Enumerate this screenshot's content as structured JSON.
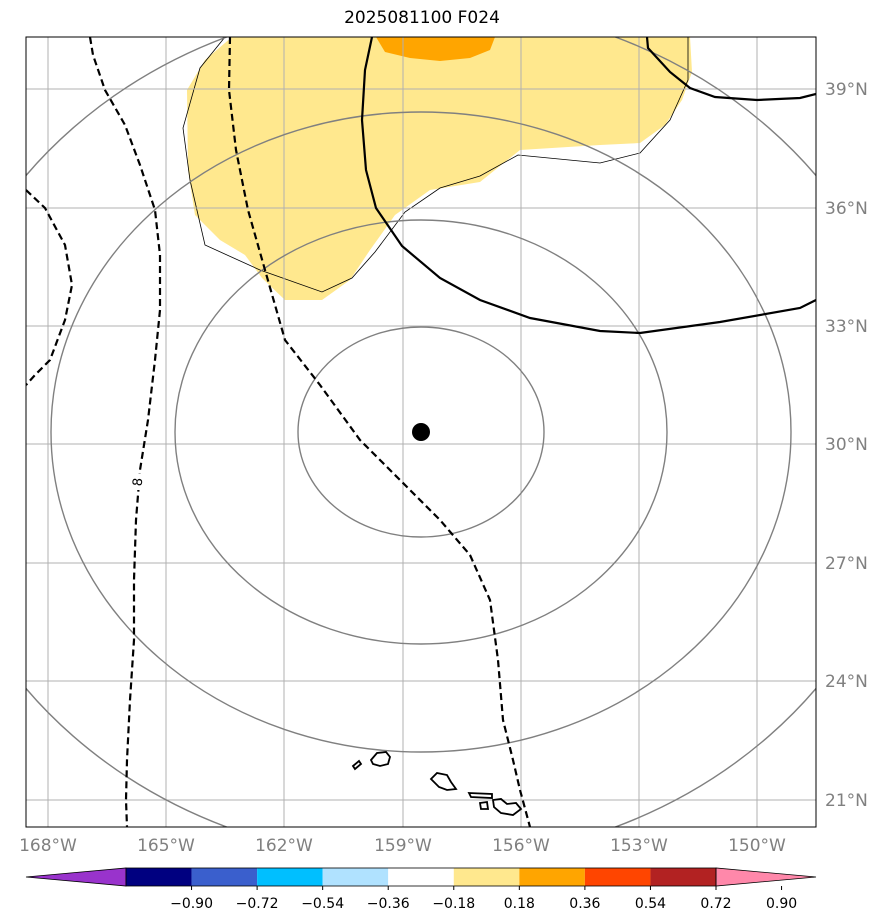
{
  "title": "2025081100 F024",
  "lon_labels": [
    "168°W",
    "165°W",
    "162°W",
    "159°W",
    "156°W",
    "153°W",
    "150°W"
  ],
  "lat_labels": [
    "39°N",
    "36°N",
    "33°N",
    "30°N",
    "27°N",
    "24°N",
    "21°N"
  ],
  "contour_label": "8",
  "colorbar": {
    "ticks": [
      "−0.90",
      "−0.72",
      "−0.54",
      "−0.36",
      "−0.18",
      "0.18",
      "0.36",
      "0.54",
      "0.72",
      "0.90"
    ],
    "colors": [
      "#9933cc",
      "#000080",
      "#3a5fcd",
      "#00bfff",
      "#b0e2ff",
      "#ffffff",
      "#ffe88e",
      "#ffa500",
      "#ff4500",
      "#b22222",
      "#ff88aa"
    ]
  },
  "center_marker": {
    "lon": -158.4,
    "lat": 30.3
  },
  "colors": {
    "grid": "#b0b0b0",
    "range_rings": "#808080",
    "contour": "#000000",
    "shading": "#ffe88e",
    "shading_strong": "#ffa500"
  }
}
